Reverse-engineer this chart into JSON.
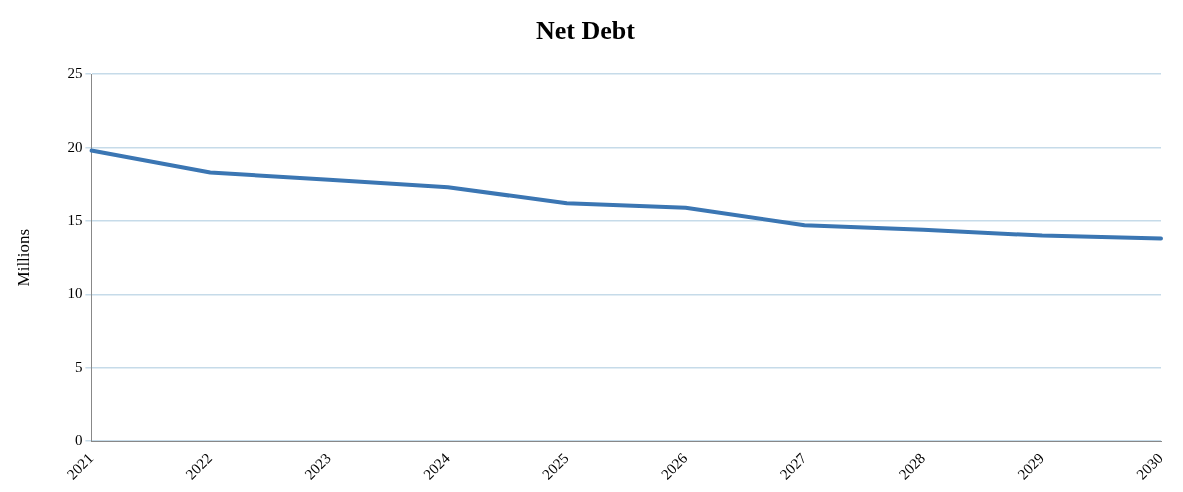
{
  "chart_data": {
    "type": "line",
    "title": "Net Debt",
    "ylabel": "Millions",
    "categories": [
      "2021",
      "2022",
      "2023",
      "2024",
      "2025",
      "2026",
      "2027",
      "2028",
      "2029",
      "2030"
    ],
    "series": [
      {
        "color": "#3b76b3",
        "values": [
          19.8,
          18.3,
          17.8,
          17.3,
          16.2,
          15.9,
          14.7,
          14.4,
          14.0,
          13.8
        ]
      }
    ],
    "ylim": [
      0,
      25
    ],
    "yticks": [
      0,
      5,
      10,
      15,
      20,
      25
    ],
    "grid": "y",
    "legend": false,
    "marker": "none",
    "line_style": "solid"
  }
}
